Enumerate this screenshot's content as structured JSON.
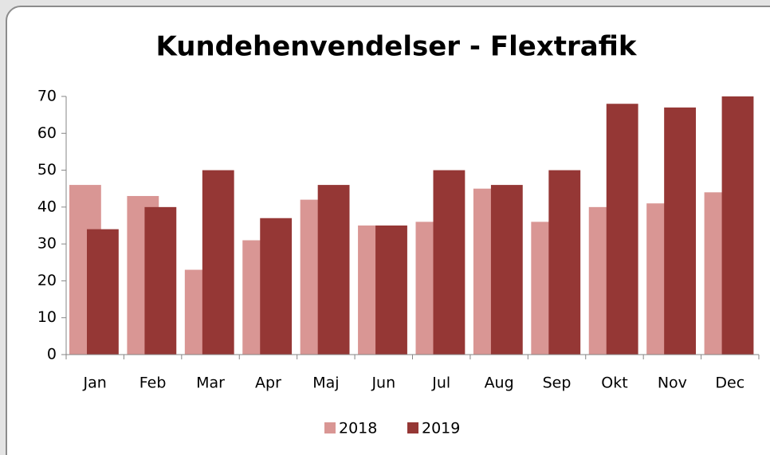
{
  "chart_data": {
    "type": "bar",
    "title": "Kundehenvendelser - Flextrafik",
    "categories": [
      "Jan",
      "Feb",
      "Mar",
      "Apr",
      "Maj",
      "Jun",
      "Jul",
      "Aug",
      "Sep",
      "Okt",
      "Nov",
      "Dec"
    ],
    "series": [
      {
        "name": "2018",
        "color": "#d99694",
        "values": [
          46,
          43,
          23,
          31,
          42,
          35,
          36,
          45,
          36,
          40,
          41,
          44
        ]
      },
      {
        "name": "2019",
        "color": "#953735",
        "values": [
          34,
          40,
          50,
          37,
          46,
          35,
          50,
          46,
          50,
          68,
          67,
          70
        ]
      }
    ],
    "ylim": [
      0,
      70
    ],
    "yticks": [
      0,
      10,
      20,
      30,
      40,
      50,
      60,
      70
    ],
    "grid": false,
    "legend": "bottom"
  }
}
